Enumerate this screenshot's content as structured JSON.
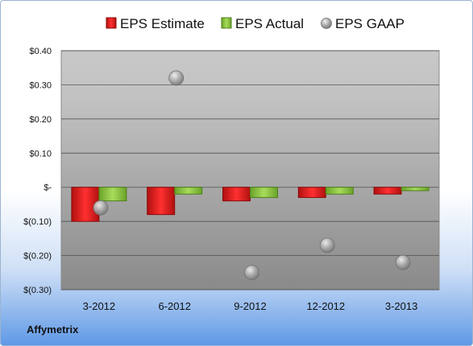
{
  "chart_data": {
    "type": "bar",
    "categories": [
      "3-2012",
      "6-2012",
      "9-2012",
      "12-2012",
      "3-2013"
    ],
    "series": [
      {
        "name": "EPS Estimate",
        "type": "bar",
        "color": "#e02020",
        "values": [
          -0.1,
          -0.08,
          -0.04,
          -0.03,
          -0.02
        ]
      },
      {
        "name": "EPS Actual",
        "type": "bar",
        "color": "#8cc63f",
        "values": [
          -0.04,
          -0.02,
          -0.03,
          -0.02,
          -0.01
        ]
      },
      {
        "name": "EPS GAAP",
        "type": "scatter",
        "color": "#a8a8a8",
        "values": [
          -0.06,
          0.32,
          -0.25,
          -0.17,
          -0.22
        ]
      }
    ],
    "yticks": [
      0.4,
      0.3,
      0.2,
      0.1,
      0,
      -0.1,
      -0.2,
      -0.3
    ],
    "ytick_labels": [
      "$0.40",
      "$0.30",
      "$0.20",
      "$0.10",
      "$-",
      "$(0.10)",
      "$(0.20)",
      "$(0.30)"
    ],
    "ylim": [
      -0.3,
      0.4
    ],
    "grid": true,
    "legend_position": "top"
  },
  "footer": {
    "company": "Affymetrix"
  }
}
